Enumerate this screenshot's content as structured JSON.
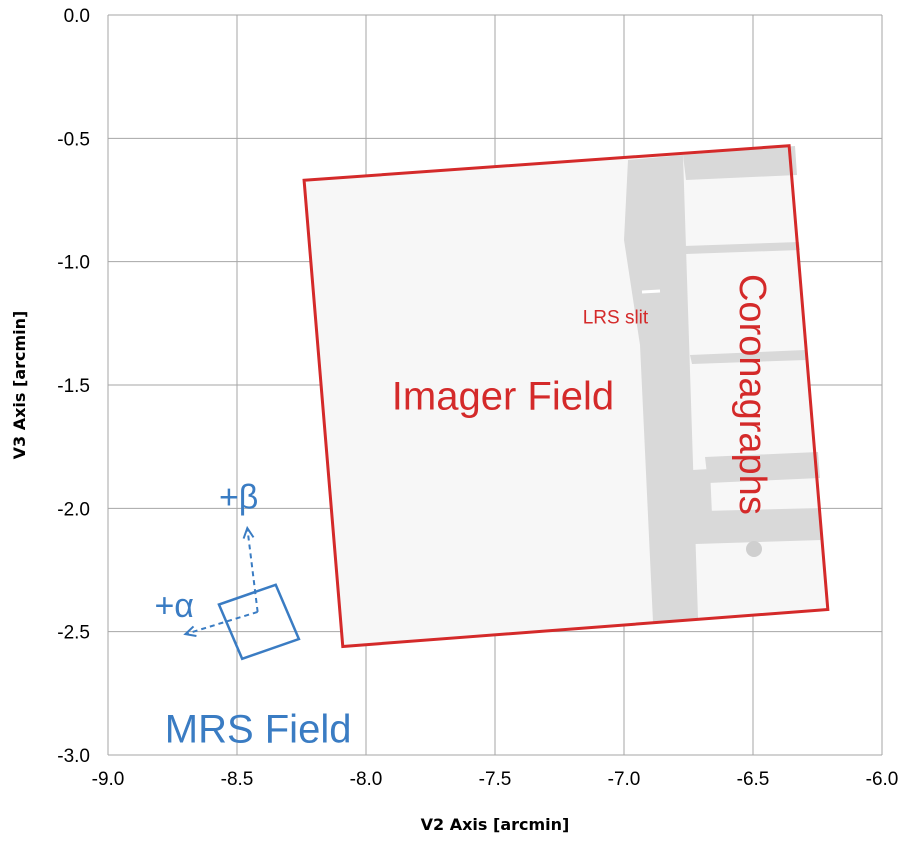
{
  "chart_data": {
    "type": "scatter",
    "title": "",
    "xlabel": "V2 Axis [arcmin]",
    "ylabel": "V3 Axis  [arcmin]",
    "xlim": [
      -9.0,
      -6.0
    ],
    "ylim": [
      -3.0,
      0.0
    ],
    "x_ticks": [
      "-9.0",
      "-8.5",
      "-8.0",
      "-7.5",
      "-7.0",
      "-6.5",
      "-6.0"
    ],
    "y_ticks": [
      "0.0",
      "-0.5",
      "-1.0",
      "-1.5",
      "-2.0",
      "-2.5",
      "-3.0"
    ],
    "x_tick_values": [
      -9.0,
      -8.5,
      -8.0,
      -7.5,
      -7.0,
      -6.5,
      -6.0
    ],
    "y_tick_values": [
      0.0,
      -0.5,
      -1.0,
      -1.5,
      -2.0,
      -2.5,
      -3.0
    ],
    "grid": true,
    "series": [
      {
        "name": "Imager Field",
        "color": "#d42a2a",
        "points": [
          [
            -8.24,
            -0.67
          ],
          [
            -6.36,
            -0.53
          ],
          [
            -6.21,
            -2.41
          ],
          [
            -8.09,
            -2.56
          ]
        ]
      },
      {
        "name": "MRS Field",
        "color": "#3a7cc3",
        "points": [
          [
            -8.35,
            -2.31
          ],
          [
            -8.26,
            -2.53
          ],
          [
            -8.48,
            -2.61
          ],
          [
            -8.57,
            -2.39
          ]
        ]
      }
    ],
    "annotations": [
      {
        "text": "Imager Field",
        "x": -7.9,
        "y": -1.6,
        "color": "#d42a2a"
      },
      {
        "text": "Coronagraphs",
        "x": -6.55,
        "y": -1.05,
        "color": "#d42a2a",
        "rotation": 90
      },
      {
        "text": "LRS slit",
        "x": -7.16,
        "y": -1.25,
        "color": "#d42a2a"
      },
      {
        "text": "MRS Field",
        "x": -8.78,
        "y": -2.95,
        "color": "#3a7cc3"
      },
      {
        "text": "+β",
        "x": -8.57,
        "y": -2.0,
        "color": "#3a7cc3"
      },
      {
        "text": "+α",
        "x": -8.82,
        "y": -2.44,
        "color": "#3a7cc3"
      }
    ],
    "mrs_axes": {
      "origin": [
        -8.42,
        -2.42
      ],
      "beta_tip": [
        -8.46,
        -2.08
      ],
      "alpha_tip": [
        -8.7,
        -2.51
      ]
    }
  }
}
